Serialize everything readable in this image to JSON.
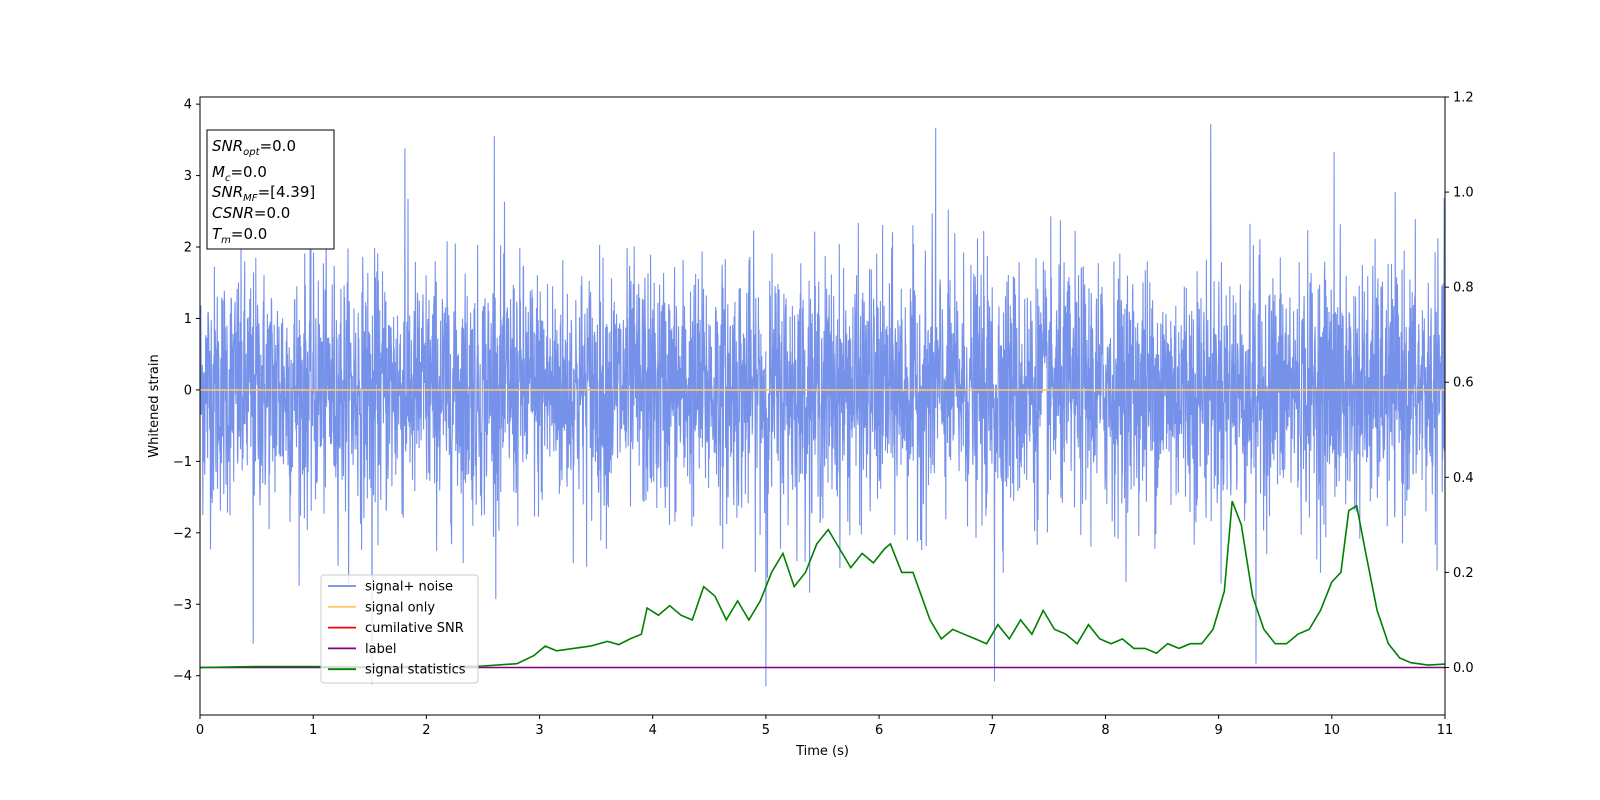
{
  "chart_data": {
    "type": "line",
    "xlabel": "Time (s)",
    "ylabel": "Whitened strain",
    "xlim": [
      0,
      11
    ],
    "ylim": [
      -4.55,
      4.1
    ],
    "y2lim": [
      -0.1,
      1.2
    ],
    "x_ticks": [
      "0",
      "1",
      "2",
      "3",
      "4",
      "5",
      "6",
      "7",
      "8",
      "9",
      "10",
      "11"
    ],
    "y_ticks": [
      "4",
      "3",
      "2",
      "1",
      "0",
      "−1",
      "−2",
      "−3",
      "−4"
    ],
    "y2_ticks": [
      "1.2",
      "1.0",
      "0.8",
      "0.6",
      "0.4",
      "0.2",
      "0.0"
    ],
    "grid": false,
    "legend_position": "lower-left",
    "stats_box": {
      "line1": {
        "sym": "SNR",
        "sub": "opt",
        "val": "=0.0"
      },
      "line2": {
        "sym": "M",
        "sub": "c",
        "val": "=0.0"
      },
      "line3": {
        "sym": "SNR",
        "sub": "MF",
        "val": "=[4.39]"
      },
      "line4": {
        "sym": "CSNR",
        "sub": "",
        "val": "=0.0"
      },
      "line5": {
        "sym": "T",
        "sub": "m",
        "val": "=0.0"
      }
    },
    "series": [
      {
        "name": "signal+ noise",
        "color": "#6f8be8",
        "axis": "left",
        "style": "noise",
        "amplitude_core": [
          -1.55,
          2.0
        ],
        "notable_spikes": [
          [
            0.47,
            -3.55
          ],
          [
            1.81,
            3.38
          ],
          [
            2.6,
            3.55
          ],
          [
            5.0,
            -4.15
          ],
          [
            6.5,
            3.67
          ],
          [
            7.02,
            -4.08
          ],
          [
            8.93,
            3.72
          ],
          [
            9.33,
            -3.83
          ],
          [
            10.02,
            3.33
          ],
          [
            1.52,
            -4.12
          ]
        ]
      },
      {
        "name": "signal only",
        "color": "#ffc966",
        "axis": "left",
        "x": [
          0,
          11
        ],
        "y": [
          0,
          0
        ]
      },
      {
        "name": "cumilative SNR",
        "color": "#ff0000",
        "axis": "left",
        "x": [],
        "y": []
      },
      {
        "name": "label",
        "color": "#800080",
        "axis": "right",
        "x": [
          0,
          11
        ],
        "y": [
          0.0,
          0.0
        ]
      },
      {
        "name": "signal statistics",
        "color": "#008000",
        "axis": "right",
        "x": [
          0.0,
          0.5,
          1.0,
          1.5,
          2.0,
          2.5,
          2.8,
          2.95,
          3.05,
          3.15,
          3.3,
          3.45,
          3.6,
          3.7,
          3.8,
          3.9,
          3.95,
          4.05,
          4.15,
          4.25,
          4.35,
          4.45,
          4.55,
          4.65,
          4.75,
          4.85,
          4.95,
          5.05,
          5.15,
          5.25,
          5.35,
          5.45,
          5.55,
          5.65,
          5.75,
          5.85,
          5.95,
          6.05,
          6.1,
          6.2,
          6.3,
          6.45,
          6.55,
          6.65,
          6.75,
          6.85,
          6.95,
          7.05,
          7.15,
          7.25,
          7.35,
          7.45,
          7.55,
          7.65,
          7.75,
          7.85,
          7.95,
          8.05,
          8.15,
          8.25,
          8.35,
          8.45,
          8.55,
          8.65,
          8.75,
          8.85,
          8.95,
          9.05,
          9.12,
          9.2,
          9.3,
          9.4,
          9.5,
          9.6,
          9.7,
          9.8,
          9.9,
          10.0,
          10.08,
          10.15,
          10.22,
          10.3,
          10.4,
          10.5,
          10.6,
          10.7,
          10.85,
          11.0
        ],
        "y": [
          0.0,
          0.002,
          0.002,
          0.001,
          0.002,
          0.003,
          0.008,
          0.025,
          0.045,
          0.035,
          0.04,
          0.045,
          0.055,
          0.048,
          0.06,
          0.07,
          0.125,
          0.11,
          0.13,
          0.11,
          0.1,
          0.17,
          0.15,
          0.1,
          0.14,
          0.1,
          0.14,
          0.2,
          0.24,
          0.17,
          0.2,
          0.26,
          0.29,
          0.25,
          0.21,
          0.24,
          0.22,
          0.25,
          0.26,
          0.2,
          0.2,
          0.1,
          0.06,
          0.08,
          0.07,
          0.06,
          0.05,
          0.09,
          0.06,
          0.1,
          0.07,
          0.12,
          0.08,
          0.07,
          0.05,
          0.09,
          0.06,
          0.05,
          0.06,
          0.04,
          0.04,
          0.03,
          0.05,
          0.04,
          0.05,
          0.05,
          0.08,
          0.16,
          0.35,
          0.3,
          0.15,
          0.08,
          0.05,
          0.05,
          0.07,
          0.08,
          0.12,
          0.18,
          0.2,
          0.33,
          0.34,
          0.24,
          0.12,
          0.05,
          0.02,
          0.01,
          0.005,
          0.007
        ]
      }
    ]
  }
}
